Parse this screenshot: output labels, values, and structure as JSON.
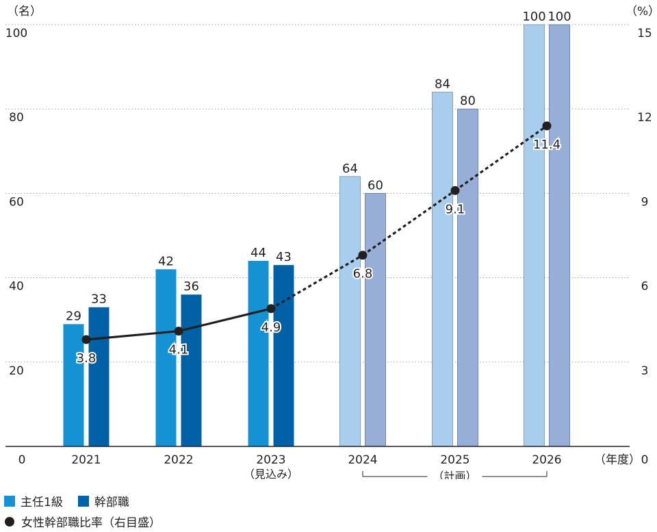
{
  "chart_data": {
    "type": "bar",
    "y_left_unit": "（名）",
    "y_right_unit": "（%）",
    "x_unit": "（年度）",
    "y_left_ticks": [
      "0",
      "20",
      "40",
      "60",
      "80",
      "100"
    ],
    "y_right_ticks": [
      "0",
      "3",
      "6",
      "9",
      "12",
      "15"
    ],
    "ylim_left": [
      0,
      100
    ],
    "ylim_right": [
      0,
      15
    ],
    "categories": [
      "2021",
      "2022",
      "2023",
      "2024",
      "2025",
      "2026"
    ],
    "category_sublabels": [
      "",
      "",
      "（見込み）",
      "",
      "",
      ""
    ],
    "plan_label": "（計画）",
    "plan_categories": [
      "2024",
      "2025",
      "2026"
    ],
    "series": [
      {
        "name": "主任1級",
        "values": [
          29,
          42,
          44,
          64,
          84,
          100
        ],
        "labels": [
          "29",
          "42",
          "44",
          "64",
          "84",
          "100"
        ],
        "color": "#1592d3",
        "plan_color": "#a9cdec"
      },
      {
        "name": "幹部職",
        "values": [
          33,
          36,
          43,
          60,
          80,
          100
        ],
        "labels": [
          "33",
          "36",
          "43",
          "60",
          "80",
          "100"
        ],
        "color": "#0161a6",
        "plan_color": "#97afd6"
      },
      {
        "name": "女性幹部職比率（右目盛）",
        "axis": "right",
        "type": "line",
        "values": [
          3.8,
          4.1,
          4.9,
          6.8,
          9.1,
          11.4
        ],
        "labels": [
          "3.8",
          "4.1",
          "4.9",
          "6.8",
          "9.1",
          "11.4"
        ],
        "color": "#231f20"
      }
    ],
    "grid": true
  },
  "legend": {
    "item1": "主任1級",
    "item2": "幹部職",
    "item3": "女性幹部職比率（右目盛）"
  }
}
